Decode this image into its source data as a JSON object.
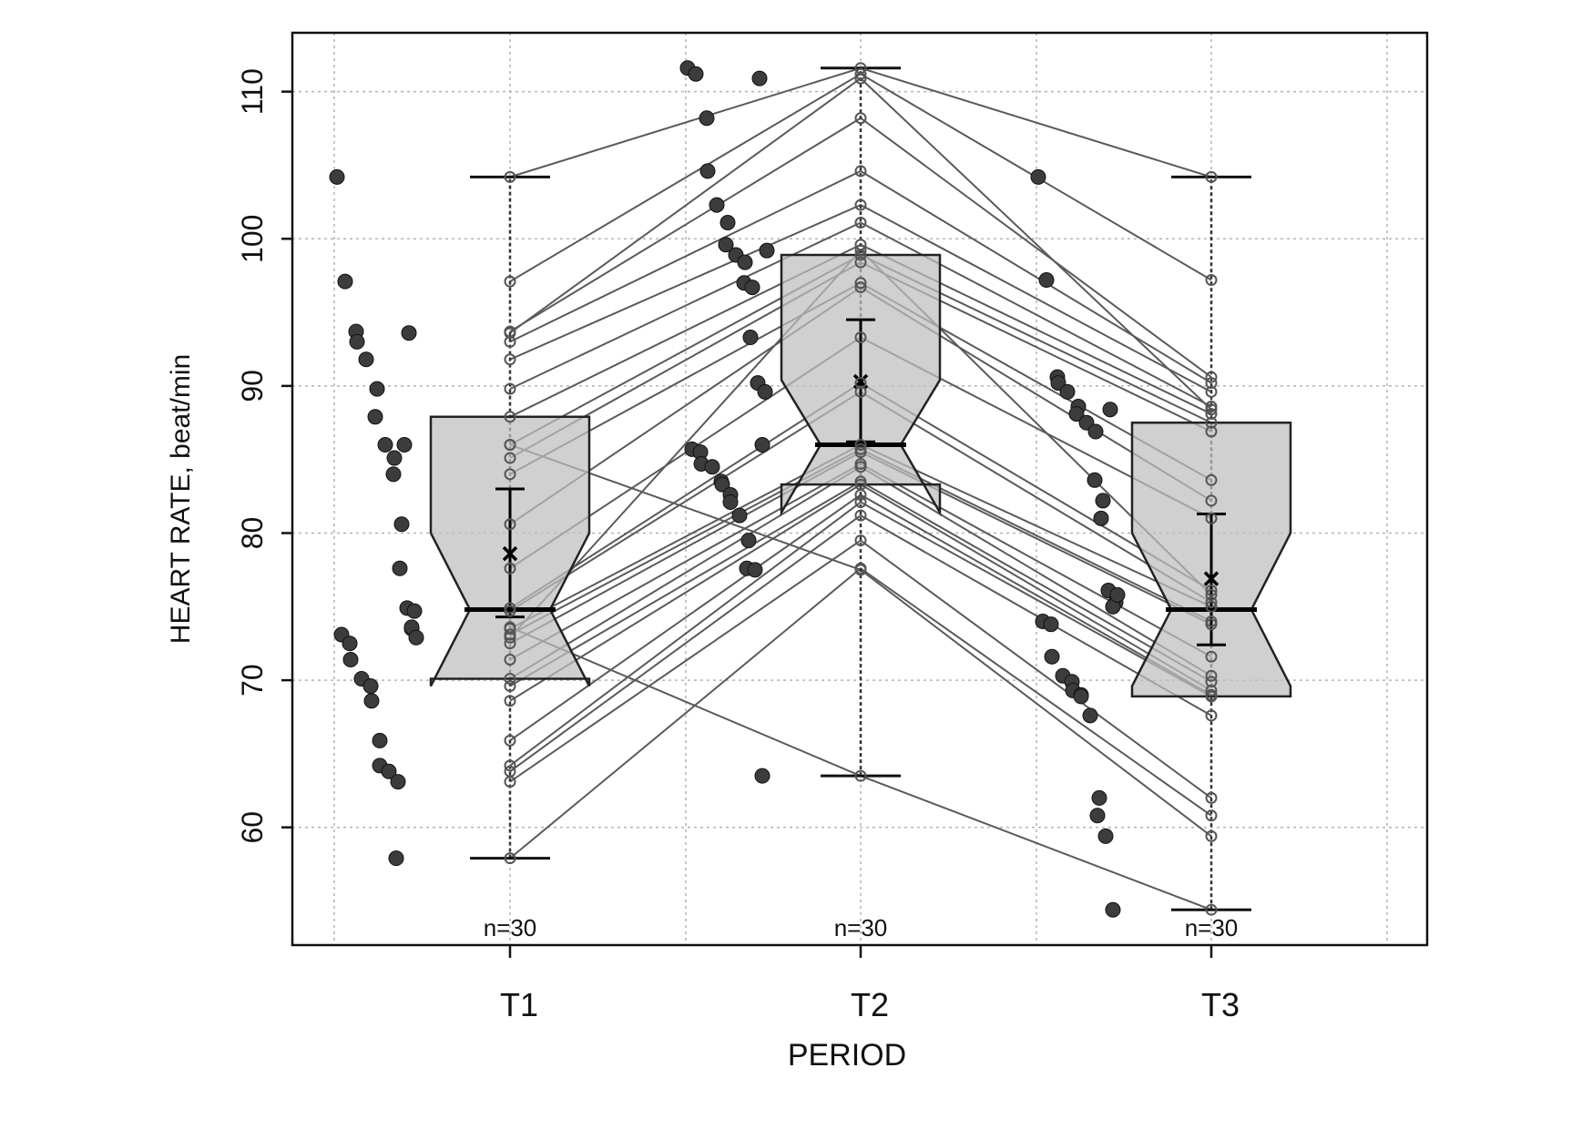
{
  "chart_data": {
    "type": "box",
    "title": "",
    "xlabel": "PERIOD",
    "ylabel": "HEART RATE, beat/min",
    "categories": [
      "T1",
      "T2",
      "T3"
    ],
    "ylim": [
      52,
      114
    ],
    "yticks": [
      60,
      70,
      80,
      90,
      100,
      110
    ],
    "grid": true,
    "boxes": [
      {
        "category": "T1",
        "whisker_low": 57.9,
        "q1": 70.1,
        "median": 74.8,
        "q3": 87.9,
        "whisker_high": 104.2,
        "notch_low": 69.6,
        "notch_high": 80.0,
        "mean": 78.6,
        "ci_low": 74.3,
        "ci_high": 83.0,
        "n_label": "n=30"
      },
      {
        "category": "T2",
        "whisker_low": 63.5,
        "q1": 83.3,
        "median": 86.0,
        "q3": 98.9,
        "whisker_high": 111.6,
        "notch_low": 81.4,
        "notch_high": 90.4,
        "mean": 90.3,
        "ci_low": 86.2,
        "ci_high": 94.5,
        "n_label": "n=30"
      },
      {
        "category": "T3",
        "whisker_low": 54.4,
        "q1": 68.9,
        "median": 74.8,
        "q3": 87.5,
        "whisker_high": 104.2,
        "notch_low": 69.6,
        "notch_high": 80.0,
        "mean": 76.9,
        "ci_low": 72.4,
        "ci_high": 81.3,
        "n_label": "n=30"
      }
    ],
    "paired": {
      "T1": [
        104.2,
        97.1,
        93.7,
        93.0,
        91.8,
        89.8,
        87.9,
        86.0,
        85.1,
        84.0,
        80.6,
        77.6,
        74.9,
        74.7,
        73.5,
        73.1,
        72.5,
        71.4,
        70.1,
        69.6,
        68.6,
        65.9,
        64.2,
        63.8,
        63.1,
        57.9,
        86.0,
        73.6,
        93.6,
        72.9
      ],
      "T2": [
        111.6,
        111.2,
        108.2,
        104.6,
        102.3,
        101.1,
        99.6,
        98.9,
        98.4,
        97.0,
        96.7,
        93.3,
        90.2,
        89.6,
        86.0,
        85.7,
        85.5,
        84.7,
        84.5,
        83.5,
        83.3,
        82.6,
        82.1,
        81.2,
        79.5,
        77.6,
        77.5,
        63.5,
        110.9,
        99.2
      ],
      "T3": [
        104.2,
        97.2,
        90.6,
        90.2,
        89.6,
        88.6,
        88.1,
        87.5,
        86.9,
        83.6,
        82.2,
        81.0,
        76.1,
        75.3,
        75.0,
        74.0,
        73.8,
        71.6,
        70.3,
        69.9,
        69.3,
        69.0,
        68.9,
        67.6,
        62.0,
        60.8,
        59.4,
        54.4,
        88.4,
        75.8
      ]
    },
    "n_labels": [
      "n=30",
      "n=30",
      "n=30"
    ]
  }
}
